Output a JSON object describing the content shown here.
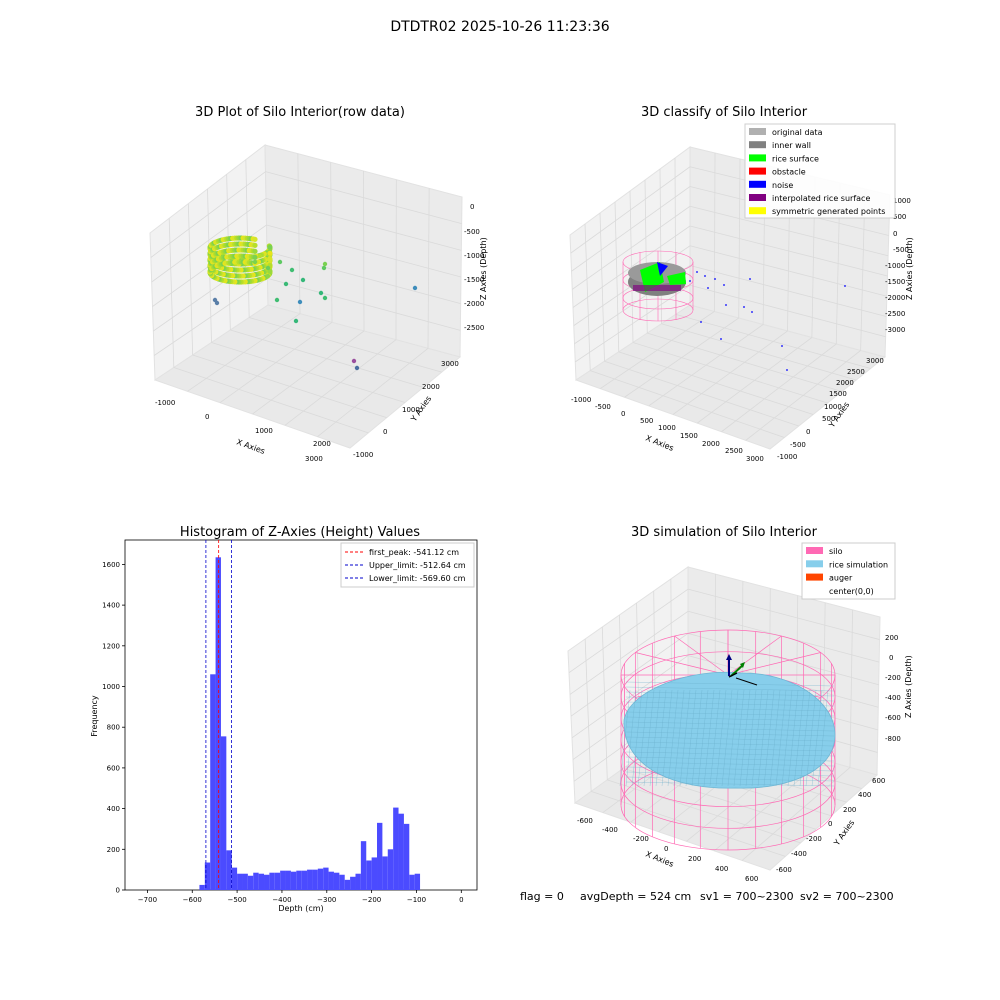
{
  "suptitle": "DTDTR02 2025-10-26 11:23:36",
  "footer": {
    "flag": "flag = 0",
    "avg": "avgDepth = 524 cm",
    "sv1": "sv1 = 700~2300",
    "sv2": "sv2 = 700~2300"
  },
  "colors": {
    "grid": "#dcdcdc",
    "pane": "#f2f2f2",
    "hist": "#4b4bff",
    "first_peak": "#ff0000",
    "limits": "#0000cc",
    "silo": "#ff69b4",
    "rice": "#87ceeb",
    "auger": "#ff4500"
  },
  "chart_data": [
    {
      "type": "scatter",
      "dimensions": 3,
      "title": "3D Plot of Silo Interior(row data)",
      "xlabel": "X Axies",
      "ylabel": "Y Axies",
      "zlabel": "Z Axies (Depth)",
      "xticks": [
        "-1000",
        "0",
        "1000",
        "2000",
        "3000"
      ],
      "yticks": [
        "-1000",
        "0",
        "1000",
        "2000",
        "3000"
      ],
      "zticks": [
        "0",
        "-500",
        "-1000",
        "-1500",
        "-2000",
        "-2500"
      ],
      "colormap": "viridis"
    },
    {
      "type": "scatter",
      "dimensions": 3,
      "title": "3D classify of Silo Interior",
      "xlabel": "X Axies",
      "ylabel": "Y Axies",
      "zlabel": "Z Axies (Depth)",
      "xticks": [
        "-1000",
        "-500",
        "0",
        "500",
        "1000",
        "1500",
        "2000",
        "2500",
        "3000"
      ],
      "yticks": [
        "-1000",
        "-500",
        "0",
        "500",
        "1000",
        "1500",
        "2000",
        "2500",
        "3000"
      ],
      "zticks": [
        "1000",
        "500",
        "0",
        "-500",
        "-1000",
        "-1500",
        "-2000",
        "-2500",
        "-3000"
      ],
      "legend_position": "top-right",
      "legend": [
        {
          "label": "original data",
          "color": "#b0b0b0"
        },
        {
          "label": "inner wall",
          "color": "#808080"
        },
        {
          "label": "rice surface",
          "color": "#00ff00"
        },
        {
          "label": "obstacle",
          "color": "#ff0000"
        },
        {
          "label": "noise",
          "color": "#0000ff"
        },
        {
          "label": "interpolated rice surface",
          "color": "#800080"
        },
        {
          "label": "symmetric generated points",
          "color": "#ffff00"
        }
      ]
    },
    {
      "type": "bar",
      "title": "Histogram of Z-Axies (Height) Values",
      "xlabel": "Depth (cm)",
      "ylabel": "Frequency",
      "xlim": [
        -750,
        35
      ],
      "ylim": [
        0,
        1720
      ],
      "xticks": [
        -700,
        -600,
        -500,
        -400,
        -300,
        -200,
        -100,
        0
      ],
      "yticks": [
        0,
        200,
        400,
        600,
        800,
        1000,
        1200,
        1400,
        1600
      ],
      "bin_width": 12,
      "bin_starts": [
        -584,
        -572,
        -560,
        -548,
        -536,
        -524,
        -512,
        -500,
        -488,
        -476,
        -464,
        -452,
        -440,
        -428,
        -416,
        -404,
        -392,
        -380,
        -368,
        -356,
        -344,
        -332,
        -320,
        -308,
        -296,
        -284,
        -272,
        -260,
        -248,
        -236,
        -224,
        -212,
        -200,
        -188,
        -176,
        -164,
        -152,
        -140,
        -128,
        -116,
        -104,
        -92,
        -80,
        -68,
        -56,
        -44,
        -32,
        -20,
        -8
      ],
      "values": [
        25,
        135,
        1060,
        1635,
        755,
        195,
        110,
        80,
        80,
        70,
        85,
        80,
        75,
        85,
        85,
        95,
        95,
        90,
        95,
        95,
        100,
        100,
        105,
        110,
        90,
        85,
        75,
        50,
        65,
        80,
        240,
        145,
        160,
        330,
        165,
        200,
        405,
        375,
        325,
        75,
        80,
        0,
        0,
        0,
        0,
        0,
        0,
        0,
        0
      ],
      "lines": [
        {
          "label": "first_peak: -541.12 cm",
          "x": -541.12,
          "color": "#ff0000"
        },
        {
          "label": "Upper_limit: -512.64 cm",
          "x": -512.64,
          "color": "#0000cc"
        },
        {
          "label": "Lower_limit: -569.60 cm",
          "x": -569.6,
          "color": "#0000cc"
        }
      ],
      "legend_position": "top-right",
      "grid": false
    },
    {
      "type": "area",
      "dimensions": 3,
      "title": "3D simulation of Silo Interior",
      "xlabel": "X Axies",
      "ylabel": "Y Axies",
      "zlabel": "Z Axies (Depth)",
      "xticks": [
        "-600",
        "-400",
        "-200",
        "0",
        "200",
        "400",
        "600"
      ],
      "yticks": [
        "600",
        "400",
        "200",
        "0",
        "-200",
        "-400",
        "-600"
      ],
      "zticks": [
        "200",
        "0",
        "-200",
        "-400",
        "-600",
        "-800"
      ],
      "legend_position": "top-right",
      "legend": [
        {
          "label": "silo",
          "color": "#ff69b4"
        },
        {
          "label": "rice simulation",
          "color": "#87ceeb"
        },
        {
          "label": "auger",
          "color": "#ff4500"
        },
        {
          "label": "center(0,0)",
          "color": ""
        }
      ]
    }
  ]
}
